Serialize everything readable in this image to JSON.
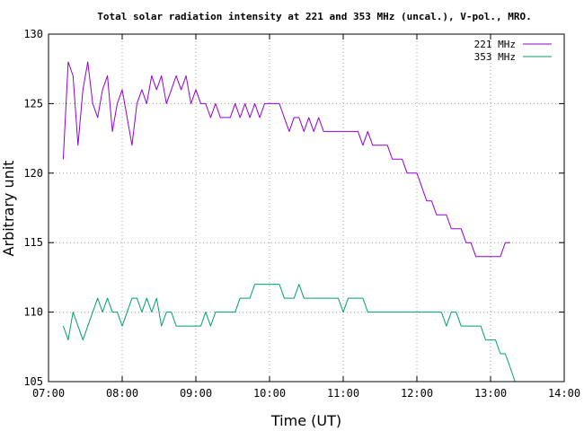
{
  "chart_data": {
    "type": "line",
    "title": "Total solar radiation intensity at 221 and 353 MHz (uncal.), V-pol., MRO.",
    "xlabel": "Time (UT)",
    "ylabel": "Arbitrary unit",
    "xlim": [
      "07:00",
      "14:00"
    ],
    "ylim": [
      105,
      130
    ],
    "x_ticks": [
      "07:00",
      "08:00",
      "09:00",
      "10:00",
      "11:00",
      "12:00",
      "13:00",
      "14:00"
    ],
    "y_ticks": [
      105,
      110,
      115,
      120,
      125,
      130
    ],
    "grid": true,
    "legend_position": "top-right",
    "series": [
      {
        "name": "221 MHz",
        "color": "#9400d3",
        "x": [
          "07:12",
          "07:16",
          "07:20",
          "07:24",
          "07:28",
          "07:32",
          "07:36",
          "07:40",
          "07:44",
          "07:48",
          "07:52",
          "07:56",
          "08:00",
          "08:04",
          "08:08",
          "08:12",
          "08:16",
          "08:20",
          "08:24",
          "08:28",
          "08:32",
          "08:36",
          "08:40",
          "08:44",
          "08:48",
          "08:52",
          "08:56",
          "09:00",
          "09:04",
          "09:08",
          "09:12",
          "09:16",
          "09:20",
          "09:24",
          "09:28",
          "09:32",
          "09:36",
          "09:40",
          "09:44",
          "09:48",
          "09:52",
          "09:56",
          "10:00",
          "10:04",
          "10:08",
          "10:12",
          "10:16",
          "10:20",
          "10:24",
          "10:28",
          "10:32",
          "10:36",
          "10:40",
          "10:44",
          "10:48",
          "10:52",
          "10:56",
          "11:00",
          "11:04",
          "11:08",
          "11:12",
          "11:16",
          "11:20",
          "11:24",
          "11:28",
          "11:32",
          "11:36",
          "11:40",
          "11:44",
          "11:48",
          "11:52",
          "11:56",
          "12:00",
          "12:04",
          "12:08",
          "12:12",
          "12:16",
          "12:20",
          "12:24",
          "12:28",
          "12:32",
          "12:36",
          "12:40",
          "12:44",
          "12:48",
          "12:52",
          "12:56",
          "13:00",
          "13:04",
          "13:08",
          "13:12",
          "13:16"
        ],
        "values": [
          121,
          128,
          127,
          122,
          126,
          128,
          125,
          124,
          126,
          127,
          123,
          125,
          126,
          124,
          122,
          125,
          126,
          125,
          127,
          126,
          127,
          125,
          126,
          127,
          126,
          127,
          125,
          126,
          125,
          125,
          124,
          125,
          124,
          124,
          124,
          125,
          124,
          125,
          124,
          125,
          124,
          125,
          125,
          125,
          125,
          124,
          123,
          124,
          124,
          123,
          124,
          123,
          124,
          123,
          123,
          123,
          123,
          123,
          123,
          123,
          123,
          122,
          123,
          122,
          122,
          122,
          122,
          121,
          121,
          121,
          120,
          120,
          120,
          119,
          118,
          118,
          117,
          117,
          117,
          116,
          116,
          116,
          115,
          115,
          114,
          114,
          114,
          114,
          114,
          114,
          115,
          115
        ]
      },
      {
        "name": "353 MHz",
        "color": "#009e73",
        "x": [
          "07:12",
          "07:16",
          "07:20",
          "07:24",
          "07:28",
          "07:32",
          "07:36",
          "07:40",
          "07:44",
          "07:48",
          "07:52",
          "07:56",
          "08:00",
          "08:04",
          "08:08",
          "08:12",
          "08:16",
          "08:20",
          "08:24",
          "08:28",
          "08:32",
          "08:36",
          "08:40",
          "08:44",
          "08:48",
          "08:52",
          "08:56",
          "09:00",
          "09:04",
          "09:08",
          "09:12",
          "09:16",
          "09:20",
          "09:24",
          "09:28",
          "09:32",
          "09:36",
          "09:40",
          "09:44",
          "09:48",
          "09:52",
          "09:56",
          "10:00",
          "10:04",
          "10:08",
          "10:12",
          "10:16",
          "10:20",
          "10:24",
          "10:28",
          "10:32",
          "10:36",
          "10:40",
          "10:44",
          "10:48",
          "10:52",
          "10:56",
          "11:00",
          "11:04",
          "11:08",
          "11:12",
          "11:16",
          "11:20",
          "11:24",
          "11:28",
          "11:32",
          "11:36",
          "11:40",
          "11:44",
          "11:48",
          "11:52",
          "11:56",
          "12:00",
          "12:04",
          "12:08",
          "12:12",
          "12:16",
          "12:20",
          "12:24",
          "12:28",
          "12:32",
          "12:36",
          "12:40",
          "12:44",
          "12:48",
          "12:52",
          "12:56",
          "13:00",
          "13:04",
          "13:08",
          "13:12",
          "13:16",
          "13:20"
        ],
        "values": [
          109,
          108,
          110,
          109,
          108,
          109,
          110,
          111,
          110,
          111,
          110,
          110,
          109,
          110,
          111,
          111,
          110,
          111,
          110,
          111,
          109,
          110,
          110,
          109,
          109,
          109,
          109,
          109,
          109,
          110,
          109,
          110,
          110,
          110,
          110,
          110,
          111,
          111,
          111,
          112,
          112,
          112,
          112,
          112,
          112,
          111,
          111,
          111,
          112,
          111,
          111,
          111,
          111,
          111,
          111,
          111,
          111,
          110,
          111,
          111,
          111,
          111,
          110,
          110,
          110,
          110,
          110,
          110,
          110,
          110,
          110,
          110,
          110,
          110,
          110,
          110,
          110,
          110,
          109,
          110,
          110,
          109,
          109,
          109,
          109,
          109,
          108,
          108,
          108,
          107,
          107,
          106,
          105
        ]
      }
    ]
  }
}
